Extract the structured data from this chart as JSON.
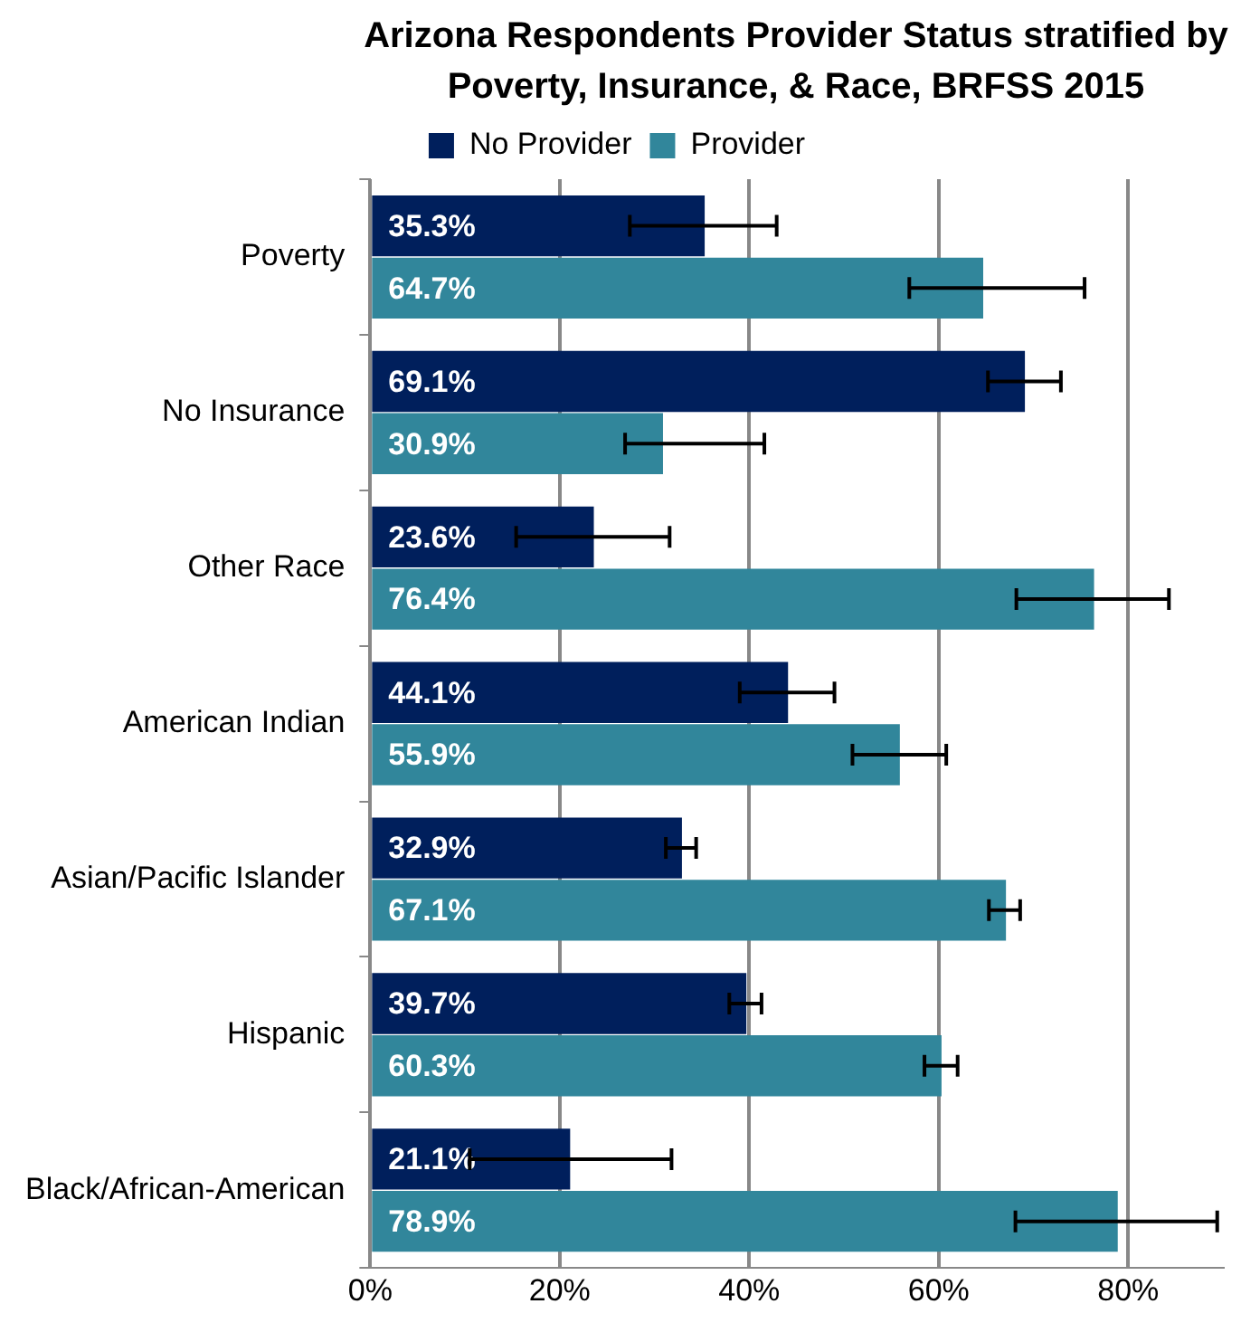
{
  "chart_data": {
    "type": "bar",
    "orientation": "horizontal",
    "title": "Arizona Respondents Provider Status stratified by Poverty, Insurance, & Race, BRFSS 2015",
    "categories": [
      "Poverty",
      "No Insurance",
      "Other Race",
      "American Indian",
      "Asian/Pacific Islander",
      "Hispanic",
      "Black/African-American"
    ],
    "series": [
      {
        "name": "No Provider",
        "color": "#001f5c",
        "values": [
          35.3,
          69.1,
          23.6,
          44.1,
          32.9,
          39.7,
          21.1
        ],
        "value_labels": [
          "35.3%",
          "69.1%",
          "23.6%",
          "44.1%",
          "32.9%",
          "39.7%",
          "21.1%"
        ],
        "errors": [
          [
            27.4,
            42.9
          ],
          [
            65.2,
            72.9
          ],
          [
            15.4,
            31.6
          ],
          [
            39.0,
            49.0
          ],
          [
            31.2,
            34.4
          ],
          [
            37.9,
            41.3
          ],
          [
            10.5,
            31.8
          ]
        ]
      },
      {
        "name": "Provider",
        "color": "#31869b",
        "values": [
          64.7,
          30.9,
          76.4,
          55.9,
          67.1,
          60.3,
          78.9
        ],
        "value_labels": [
          "64.7%",
          "30.9%",
          "76.4%",
          "55.9%",
          "67.1%",
          "60.3%",
          "78.9%"
        ],
        "errors": [
          [
            56.9,
            75.4
          ],
          [
            26.9,
            41.6
          ],
          [
            68.2,
            84.3
          ],
          [
            50.9,
            60.8
          ],
          [
            65.3,
            68.6
          ],
          [
            58.5,
            62.0
          ],
          [
            68.1,
            89.4
          ]
        ]
      }
    ],
    "xlim": [
      0,
      90
    ],
    "xticks": [
      {
        "value": 0,
        "label": "0%"
      },
      {
        "value": 20,
        "label": "20%"
      },
      {
        "value": 40,
        "label": "40%"
      },
      {
        "value": 60,
        "label": "60%"
      },
      {
        "value": 80,
        "label": "80%"
      }
    ],
    "grid": "x",
    "legend": "top"
  }
}
